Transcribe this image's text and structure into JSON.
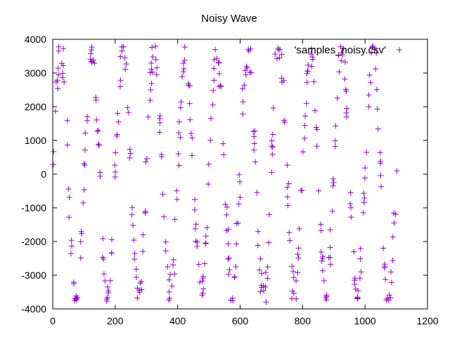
{
  "chart_data": {
    "type": "scatter",
    "title": "Noisy Wave",
    "xlabel": "",
    "ylabel": "",
    "xlim": [
      0,
      1200
    ],
    "ylim": [
      -4000,
      4000
    ],
    "x_ticks": [
      "0",
      "200",
      "400",
      "600",
      "800",
      "1000",
      "1200"
    ],
    "y_ticks": [
      "-4000",
      "-3000",
      "-2000",
      "-1000",
      "0",
      "1000",
      "2000",
      "3000",
      "4000"
    ],
    "grid": false,
    "legend_position": "top-right",
    "marker": "+",
    "series": [
      {
        "name": "'samples_noisy.csv'",
        "color": "#9400d3",
        "wave_model": {
          "x_start": 0,
          "x_end": 1100,
          "x_step": 2.5,
          "period": 100,
          "amplitude": 3600,
          "phase_deg": 0,
          "noise_x": 4,
          "noise_y": 350
        }
      }
    ]
  }
}
